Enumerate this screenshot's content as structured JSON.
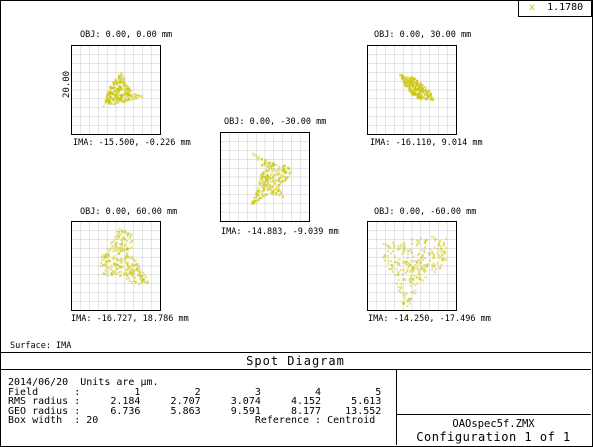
{
  "legend": {
    "marker": "x",
    "wavelength": "1.1780"
  },
  "scale_label": "20.00",
  "panels": [
    {
      "obj": "OBJ: 0.00, 0.00 mm",
      "ima": "IMA: -15.500, -0.226 mm"
    },
    {
      "obj": "OBJ: 0.00, 30.00 mm",
      "ima": "IMA: -16.110, 9.014 mm"
    },
    {
      "obj": "OBJ: 0.00, -30.00 mm",
      "ima": "IMA: -14.883, -9.039 mm"
    },
    {
      "obj": "OBJ: 0.00, 60.00 mm",
      "ima": "IMA: -16.727, 18.786 mm"
    },
    {
      "obj": "OBJ: 0.00, -60.00 mm",
      "ima": "IMA: -14.250, -17.496 mm"
    }
  ],
  "surface": "Surface: IMA",
  "title": "Spot Diagram",
  "info": {
    "date_units": "2014/06/20  Units are µm.",
    "field_label": "Field",
    "fields": [
      "1",
      "2",
      "3",
      "4",
      "5"
    ],
    "rms_label": "RMS radius",
    "rms": [
      "2.184",
      "2.707",
      "3.074",
      "4.152",
      "5.613"
    ],
    "geo_label": "GEO radius",
    "geo": [
      "6.736",
      "5.863",
      "9.591",
      "8.177",
      "13.552"
    ],
    "box_label": "Box width",
    "box_value": "20",
    "reference_label": "Reference",
    "reference_value": "Centroid"
  },
  "file_name": "OAOspec5f.ZMX",
  "configuration": "Configuration 1 of 1",
  "colors": {
    "spot": "#c8c400",
    "grid": "#000000"
  }
}
